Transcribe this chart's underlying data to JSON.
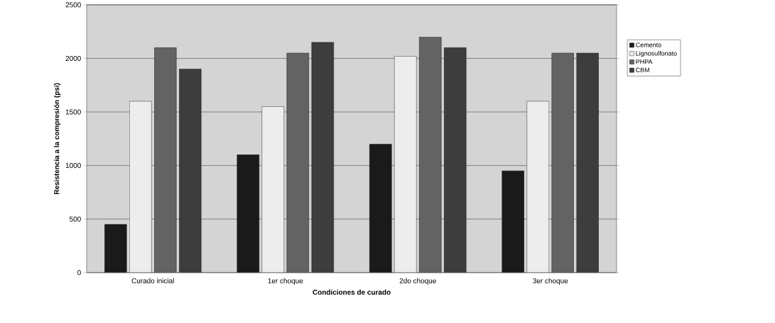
{
  "chart_data": {
    "type": "bar",
    "xlabel": "Condiciones de curado",
    "ylabel": "Resistencia a la compresión (psi)",
    "categories": [
      "Curado inicial",
      "1er choque",
      "2do choque",
      "3er choque"
    ],
    "series": [
      {
        "name": "Cemento",
        "color": "#1a1a1a",
        "values": [
          450,
          1100,
          1200,
          950
        ]
      },
      {
        "name": "Lignosulfonato",
        "color": "#ededed",
        "values": [
          1600,
          1550,
          2020,
          1600
        ]
      },
      {
        "name": "PHPA",
        "color": "#636363",
        "values": [
          2100,
          2050,
          2200,
          2050
        ]
      },
      {
        "name": "CBM",
        "color": "#3d3d3d",
        "values": [
          1900,
          2150,
          2100,
          2050
        ]
      }
    ],
    "ylim": [
      0,
      2500
    ],
    "yticks": [
      0,
      500,
      1000,
      1500,
      2000,
      2500
    ],
    "grid": "y",
    "legend": "right"
  }
}
